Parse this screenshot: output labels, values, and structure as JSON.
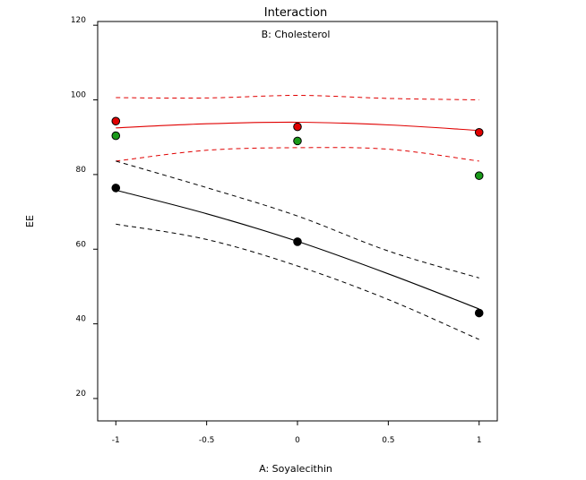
{
  "chart_data": {
    "type": "line",
    "title": "Interaction",
    "subtitle": "B: Cholesterol",
    "xlabel": "A: Soyalecithin",
    "ylabel": "EE",
    "xlim": [
      -1.1,
      1.1
    ],
    "ylim": [
      14,
      121
    ],
    "x_ticks": [
      "-1",
      "-0.5",
      "0",
      "0.5",
      "1"
    ],
    "y_ticks": [
      "20",
      "40",
      "60",
      "80",
      "100",
      "120"
    ],
    "grid": false,
    "series": [
      {
        "color": "#e00000",
        "fit": [
          [
            -1,
            92.5
          ],
          [
            -0.5,
            93.6
          ],
          [
            0,
            94.0
          ],
          [
            0.5,
            93.3
          ],
          [
            1,
            91.8
          ]
        ],
        "upper_ci": [
          [
            -1,
            100.6
          ],
          [
            -0.5,
            100.5
          ],
          [
            0,
            101.2
          ],
          [
            0.5,
            100.4
          ],
          [
            1,
            100.0
          ]
        ],
        "lower_ci": [
          [
            -1,
            83.6
          ],
          [
            -0.5,
            86.5
          ],
          [
            0,
            87.2
          ],
          [
            0.5,
            86.8
          ],
          [
            1,
            83.6
          ]
        ],
        "points": [
          {
            "x": -1,
            "y": 94.3,
            "color": "#e00000"
          },
          {
            "x": 0,
            "y": 92.8,
            "color": "#e00000"
          },
          {
            "x": 1,
            "y": 91.3,
            "color": "#e00000"
          },
          {
            "x": -1,
            "y": 90.4,
            "color": "#1a9a1a"
          },
          {
            "x": 0,
            "y": 89.0,
            "color": "#1a9a1a"
          },
          {
            "x": 1,
            "y": 79.7,
            "color": "#1a9a1a"
          }
        ]
      },
      {
        "color": "#000000",
        "fit": [
          [
            -1,
            75.8
          ],
          [
            -0.5,
            69.5
          ],
          [
            0,
            62.1
          ],
          [
            0.5,
            53.4
          ],
          [
            1,
            44.0
          ]
        ],
        "upper_ci": [
          [
            -1,
            83.6
          ],
          [
            -0.5,
            76.5
          ],
          [
            0,
            68.9
          ],
          [
            0.5,
            59.5
          ],
          [
            1,
            52.3
          ]
        ],
        "lower_ci": [
          [
            -1,
            66.7
          ],
          [
            -0.5,
            62.6
          ],
          [
            0,
            55.5
          ],
          [
            0.5,
            46.5
          ],
          [
            1,
            35.8
          ]
        ],
        "points": [
          {
            "x": -1,
            "y": 76.4,
            "color": "#000000"
          },
          {
            "x": 0,
            "y": 62.0,
            "color": "#000000"
          },
          {
            "x": 1,
            "y": 42.9,
            "color": "#000000"
          }
        ]
      }
    ]
  }
}
